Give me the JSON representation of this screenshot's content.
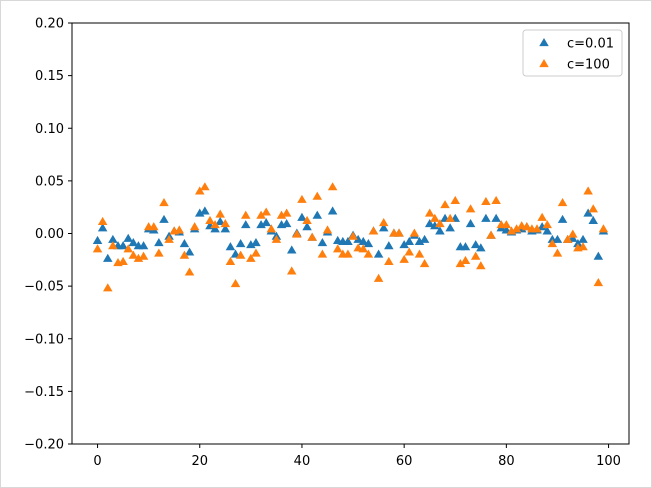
{
  "chart_data": {
    "type": "scatter",
    "title": "",
    "xlabel": "",
    "ylabel": "",
    "xlim": [
      -5,
      104
    ],
    "ylim": [
      -0.2,
      0.2
    ],
    "xticks": [
      "0",
      "20",
      "40",
      "60",
      "80",
      "100"
    ],
    "yticks": [
      "−0.20",
      "−0.15",
      "−0.10",
      "−0.05",
      "0.00",
      "0.05",
      "0.10",
      "0.15",
      "0.20"
    ],
    "grid": false,
    "legend_position": "top-right",
    "marker": "triangle-up",
    "series": [
      {
        "name": "c=0.01",
        "color": "#1f77b4",
        "x": [
          0,
          1,
          2,
          3,
          4,
          5,
          6,
          7,
          8,
          9,
          10,
          11,
          12,
          13,
          14,
          15,
          16,
          17,
          18,
          19,
          20,
          21,
          22,
          23,
          24,
          25,
          26,
          27,
          28,
          29,
          30,
          31,
          32,
          33,
          34,
          35,
          36,
          37,
          38,
          39,
          40,
          41,
          42,
          43,
          44,
          45,
          46,
          47,
          48,
          49,
          50,
          51,
          52,
          53,
          54,
          55,
          56,
          57,
          58,
          59,
          60,
          61,
          62,
          63,
          64,
          65,
          66,
          67,
          68,
          69,
          70,
          71,
          72,
          73,
          74,
          75,
          76,
          77,
          78,
          79,
          80,
          81,
          82,
          83,
          84,
          85,
          86,
          87,
          88,
          89,
          90,
          91,
          92,
          93,
          94,
          95,
          96,
          97,
          98,
          99
        ],
        "y": [
          -0.007,
          0.005,
          -0.024,
          -0.006,
          -0.012,
          -0.012,
          -0.005,
          -0.009,
          -0.012,
          -0.012,
          0.004,
          0.003,
          -0.009,
          0.013,
          -0.003,
          0.002,
          0.001,
          -0.01,
          -0.018,
          0.004,
          0.019,
          0.021,
          0.007,
          0.004,
          0.011,
          0.004,
          -0.013,
          -0.02,
          -0.01,
          0.008,
          -0.011,
          -0.009,
          0.008,
          0.01,
          0.002,
          -0.003,
          0.008,
          0.009,
          -0.016,
          0.0,
          0.015,
          0.006,
          -0.004,
          0.017,
          -0.009,
          0.001,
          0.021,
          -0.007,
          -0.008,
          -0.008,
          -0.002,
          -0.006,
          -0.008,
          -0.01,
          0.002,
          -0.02,
          0.005,
          -0.012,
          0.0,
          0.0,
          -0.011,
          -0.008,
          -0.002,
          -0.008,
          -0.006,
          0.009,
          0.007,
          0.002,
          0.014,
          0.005,
          0.014,
          -0.013,
          -0.013,
          0.009,
          -0.011,
          -0.014,
          0.014,
          -0.002,
          0.014,
          0.005,
          0.003,
          0.001,
          0.003,
          0.004,
          0.006,
          0.002,
          0.003,
          0.006,
          0.002,
          -0.006,
          -0.006,
          0.013,
          -0.006,
          -0.005,
          -0.01,
          -0.006,
          0.019,
          0.012,
          -0.022,
          0.002
        ]
      },
      {
        "name": "c=100",
        "color": "#ff7f0e",
        "x": [
          0,
          1,
          2,
          3,
          4,
          5,
          6,
          7,
          8,
          9,
          10,
          11,
          12,
          13,
          14,
          15,
          16,
          17,
          18,
          19,
          20,
          21,
          22,
          23,
          24,
          25,
          26,
          27,
          28,
          29,
          30,
          31,
          32,
          33,
          34,
          35,
          36,
          37,
          38,
          39,
          40,
          41,
          42,
          43,
          44,
          45,
          46,
          47,
          48,
          49,
          50,
          51,
          52,
          53,
          54,
          55,
          56,
          57,
          58,
          59,
          60,
          61,
          62,
          63,
          64,
          65,
          66,
          67,
          68,
          69,
          70,
          71,
          72,
          73,
          74,
          75,
          76,
          77,
          78,
          79,
          80,
          81,
          82,
          83,
          84,
          85,
          86,
          87,
          88,
          89,
          90,
          91,
          92,
          93,
          94,
          95,
          96,
          97,
          98,
          99
        ],
        "y": [
          -0.015,
          0.011,
          -0.052,
          -0.012,
          -0.028,
          -0.027,
          -0.015,
          -0.021,
          -0.024,
          -0.022,
          0.006,
          0.006,
          -0.019,
          0.029,
          -0.006,
          0.002,
          0.003,
          -0.021,
          -0.037,
          0.006,
          0.04,
          0.044,
          0.012,
          0.008,
          0.018,
          0.009,
          -0.027,
          -0.048,
          -0.021,
          0.017,
          -0.024,
          -0.019,
          0.017,
          0.02,
          0.004,
          -0.006,
          0.017,
          0.019,
          -0.036,
          -0.001,
          0.032,
          0.012,
          -0.004,
          0.035,
          -0.02,
          0.003,
          0.044,
          -0.015,
          -0.02,
          -0.02,
          -0.003,
          -0.014,
          -0.015,
          -0.02,
          0.002,
          -0.043,
          0.01,
          -0.027,
          0.0,
          0.0,
          -0.025,
          -0.018,
          0.0,
          -0.02,
          -0.029,
          0.019,
          0.014,
          0.009,
          0.027,
          0.014,
          0.031,
          -0.029,
          -0.026,
          0.023,
          -0.022,
          -0.031,
          0.03,
          -0.002,
          0.031,
          0.008,
          0.008,
          0.002,
          0.004,
          0.007,
          0.006,
          0.004,
          0.004,
          0.015,
          0.008,
          -0.01,
          -0.019,
          0.029,
          -0.006,
          -0.001,
          -0.014,
          -0.013,
          0.04,
          0.023,
          -0.047,
          0.004
        ]
      }
    ]
  }
}
